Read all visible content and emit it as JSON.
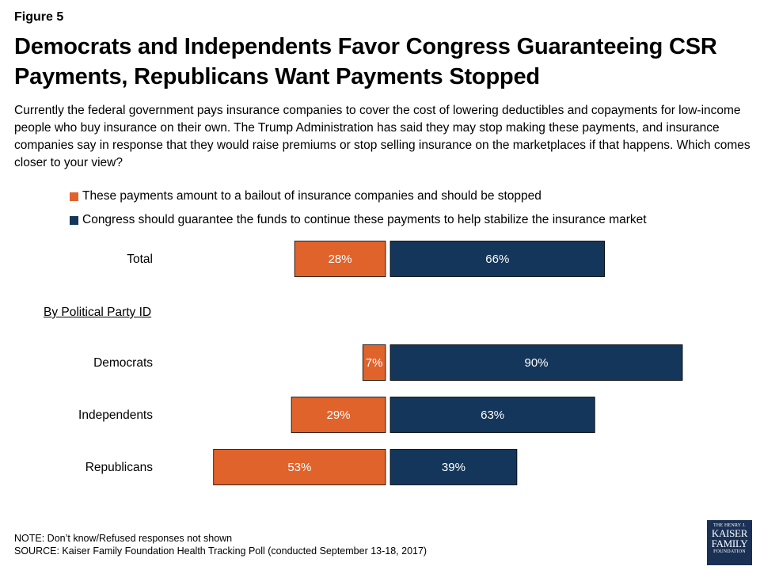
{
  "figure_label": "Figure 5",
  "title": "Democrats and Independents Favor Congress Guaranteeing CSR Payments, Republicans Want Payments Stopped",
  "subtitle": "Currently the federal government pays insurance companies to cover the cost of lowering deductibles and copayments for low-income people who buy insurance on their own. The Trump Administration has said they may stop making these payments, and insurance companies say in response that they would raise premiums or stop selling insurance on the marketplaces if that happens. Which comes closer to your view?",
  "section_label": "By Political Party ID",
  "notes": {
    "note": "NOTE: Don’t know/Refused responses not shown",
    "source": "SOURCE: Kaiser Family Foundation Health Tracking Poll (conducted September 13-18, 2017)"
  },
  "logo": {
    "line1": "THE HENRY J.",
    "line2": "KAISER",
    "line3": "FAMILY",
    "line4": "FOUNDATION"
  },
  "colors": {
    "stopped": "#e0632c",
    "guarantee": "#14365a",
    "text": "#000000"
  },
  "chart_data": {
    "type": "bar",
    "orientation": "horizontal-diverging",
    "categories": [
      "Total",
      "Democrats",
      "Independents",
      "Republicans"
    ],
    "series": [
      {
        "name": "These payments amount to a bailout of insurance companies and should be stopped",
        "values": [
          28,
          7,
          29,
          53
        ]
      },
      {
        "name": "Congress should guarantee the funds to continue these payments to help stabilize the insurance market",
        "values": [
          66,
          90,
          63,
          39
        ]
      }
    ],
    "value_suffix": "%",
    "legend": "top-left",
    "grid": false
  }
}
